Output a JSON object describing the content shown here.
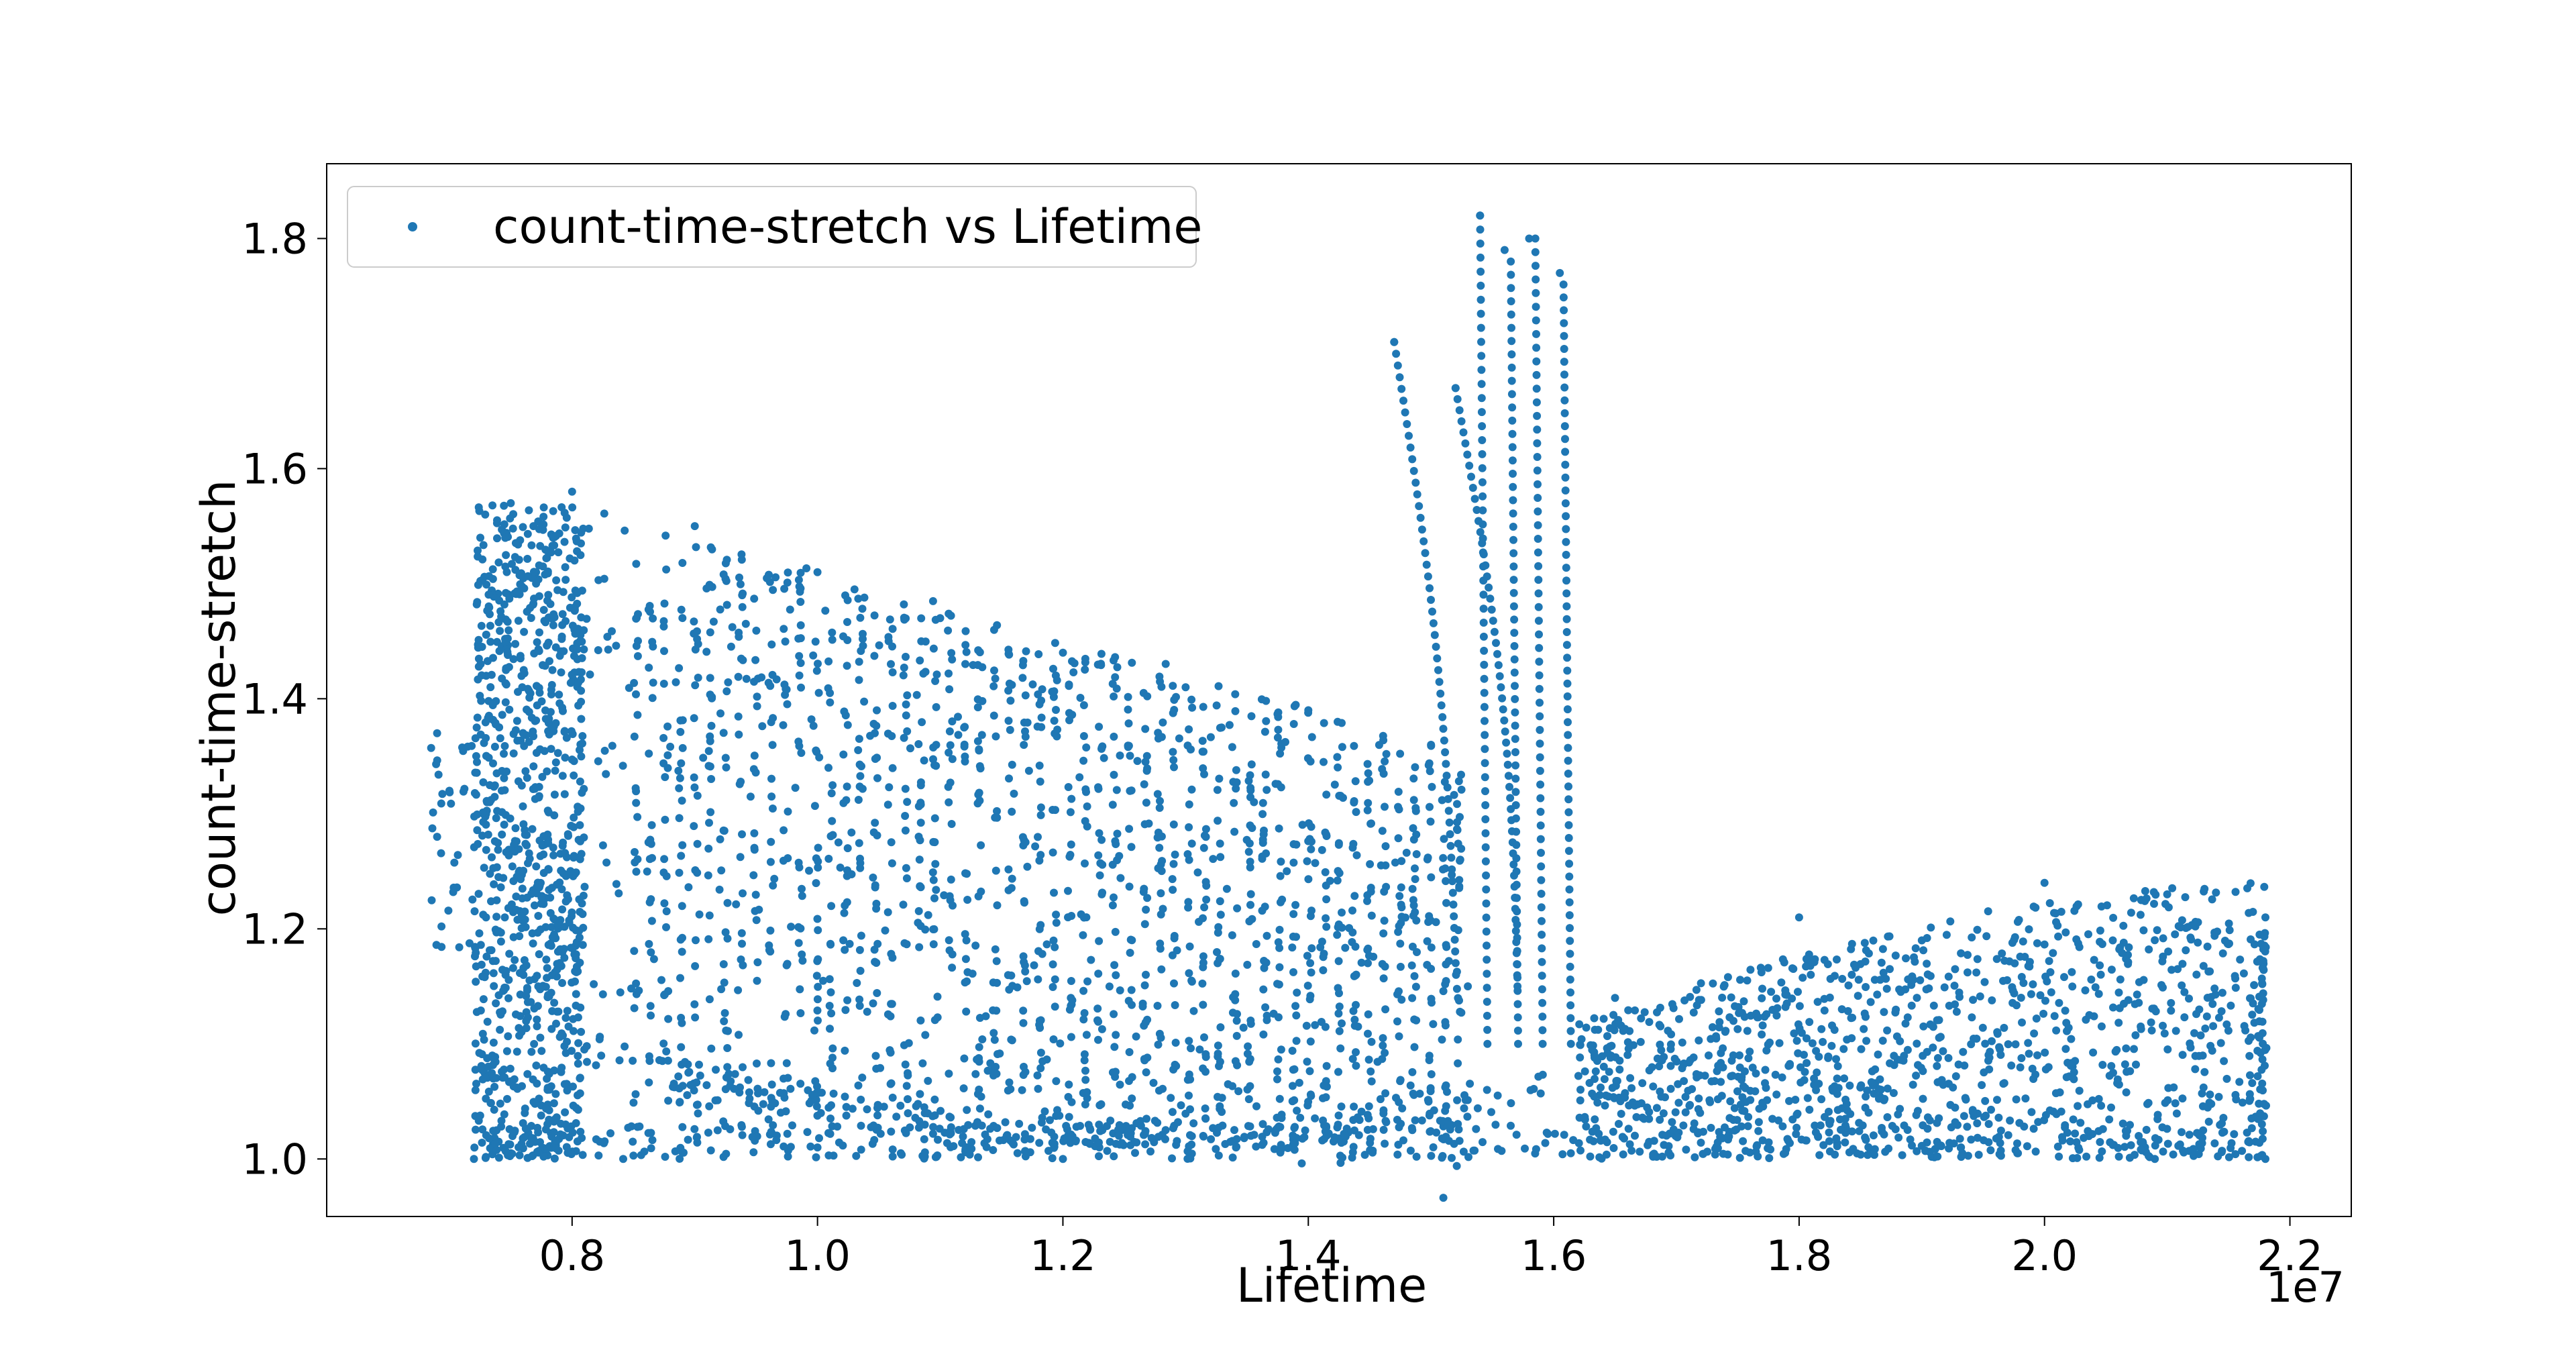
{
  "colors": {
    "series": "#1f77b4",
    "axes": "#000000",
    "legend_border": "#cccccc",
    "background": "#ffffff"
  },
  "chart_data": {
    "type": "scatter",
    "title": "",
    "xlabel": "Lifetime",
    "ylabel": "count-time-stretch",
    "x_offset_label": "1e7",
    "xlim": [
      6000000,
      22500000
    ],
    "ylim": [
      0.95,
      1.865
    ],
    "xticks": [
      8000000,
      10000000,
      12000000,
      14000000,
      16000000,
      18000000,
      20000000,
      22000000
    ],
    "xtick_labels": [
      "0.8",
      "1.0",
      "1.2",
      "1.4",
      "1.6",
      "1.8",
      "2.0",
      "2.2"
    ],
    "yticks": [
      1.0,
      1.2,
      1.4,
      1.6,
      1.8
    ],
    "ytick_labels": [
      "1.0",
      "1.2",
      "1.4",
      "1.6",
      "1.8"
    ],
    "grid": false,
    "legend_position": "upper-left",
    "series": [
      {
        "name": "count-time-stretch vs Lifetime",
        "summary_points": [
          {
            "x": 6900000,
            "y": 1.37
          },
          {
            "x": 6900000,
            "y": 1.28
          },
          {
            "x": 7000000,
            "y": 1.32
          },
          {
            "x": 7200000,
            "y": 1.0
          },
          {
            "x": 7300000,
            "y": 1.42
          },
          {
            "x": 7500000,
            "y": 1.57
          },
          {
            "x": 8000000,
            "y": 1.58
          },
          {
            "x": 9000000,
            "y": 1.55
          },
          {
            "x": 10000000,
            "y": 1.51
          },
          {
            "x": 11000000,
            "y": 1.47
          },
          {
            "x": 12000000,
            "y": 1.44
          },
          {
            "x": 13000000,
            "y": 1.41
          },
          {
            "x": 14000000,
            "y": 1.39
          },
          {
            "x": 15000000,
            "y": 1.36
          },
          {
            "x": 15300000,
            "y": 1.15
          },
          {
            "x": 14700000,
            "y": 1.71
          },
          {
            "x": 15200000,
            "y": 1.67
          },
          {
            "x": 15400000,
            "y": 1.82
          },
          {
            "x": 15600000,
            "y": 1.79
          },
          {
            "x": 15800000,
            "y": 1.8
          },
          {
            "x": 16050000,
            "y": 1.77
          },
          {
            "x": 16500000,
            "y": 1.14
          },
          {
            "x": 18000000,
            "y": 1.21
          },
          {
            "x": 19000000,
            "y": 1.19
          },
          {
            "x": 20000000,
            "y": 1.24
          },
          {
            "x": 21000000,
            "y": 1.23
          },
          {
            "x": 21800000,
            "y": 1.21
          },
          {
            "x": 21800000,
            "y": 1.0
          },
          {
            "x": 10000000,
            "y": 1.01
          },
          {
            "x": 12000000,
            "y": 1.0
          }
        ]
      }
    ]
  }
}
